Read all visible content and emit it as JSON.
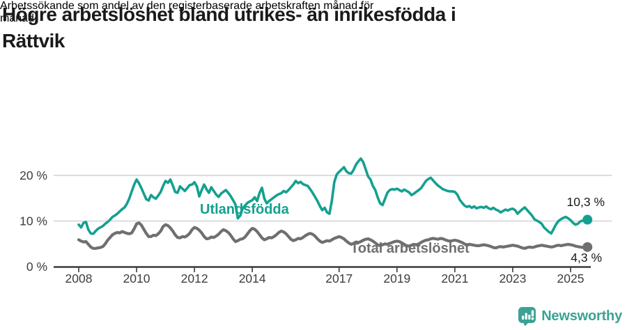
{
  "header": {
    "title_lines": [
      "Högre arbetslöshet bland utrikes- än inrikesfödda i",
      "Rättvik"
    ],
    "subtitle_lines": [
      "Arbetssökande som andel av den registerbaserade arbetskraften månad för",
      "månad."
    ]
  },
  "chart_data": {
    "type": "line",
    "title": "Högre arbetslöshet bland utrikes- än inrikesfödda i Rättvik",
    "subtitle": "Arbetssökande som andel av den registerbaserade arbetskraften månad för månad.",
    "unit": "%",
    "x_start_year": 2008,
    "x_step_months": 1,
    "x_end": "2025-08",
    "ylim": [
      0,
      24
    ],
    "grid": "horizontal",
    "y_ticks": [
      [
        0,
        "0 %"
      ],
      [
        10,
        "10 %"
      ],
      [
        20,
        "20 %"
      ]
    ],
    "x_ticks": [
      [
        2008,
        "2008"
      ],
      [
        2010,
        "2010"
      ],
      [
        2012,
        "2012"
      ],
      [
        2014,
        "2014"
      ],
      [
        2017,
        "2017"
      ],
      [
        2019,
        "2019"
      ],
      [
        2021,
        "2021"
      ],
      [
        2023,
        "2023"
      ],
      [
        2025,
        "2025"
      ]
    ],
    "series": [
      {
        "name": "Utlandsfödda",
        "color": "#14a090",
        "stroke_width": 3.6,
        "end_value_label": "10,3 %",
        "values": [
          9.2,
          8.6,
          9.6,
          9.8,
          8.1,
          7.3,
          7.2,
          7.8,
          8.3,
          8.6,
          8.9,
          9.4,
          9.8,
          10.3,
          10.9,
          11.2,
          11.6,
          12.1,
          12.6,
          13.0,
          13.8,
          15.0,
          16.5,
          18.0,
          19.1,
          18.3,
          17.2,
          16.0,
          14.8,
          14.5,
          15.7,
          15.2,
          14.9,
          15.6,
          16.4,
          17.7,
          18.8,
          18.4,
          19.1,
          17.8,
          16.4,
          16.2,
          17.6,
          17.1,
          16.6,
          17.2,
          17.9,
          18.0,
          18.5,
          17.6,
          15.4,
          16.8,
          18.0,
          17.0,
          16.2,
          17.4,
          16.6,
          15.8,
          15.3,
          16.0,
          16.4,
          16.8,
          16.2,
          15.5,
          14.6,
          13.6,
          10.6,
          11.2,
          12.8,
          13.4,
          14.0,
          14.3,
          14.6,
          15.2,
          14.4,
          16.2,
          17.3,
          14.9,
          13.9,
          14.4,
          14.8,
          15.2,
          15.6,
          15.9,
          16.1,
          16.6,
          16.3,
          16.8,
          17.4,
          18.0,
          18.8,
          18.3,
          18.6,
          18.1,
          17.9,
          17.7,
          17.0,
          16.2,
          15.3,
          14.4,
          13.3,
          12.4,
          12.9,
          11.9,
          11.6,
          14.5,
          18.5,
          20.2,
          20.8,
          21.3,
          21.8,
          20.9,
          20.5,
          20.4,
          21.2,
          22.4,
          23.1,
          23.7,
          22.9,
          21.4,
          19.8,
          19.1,
          17.7,
          16.8,
          15.2,
          13.9,
          13.5,
          14.8,
          16.2,
          16.8,
          17.0,
          16.9,
          17.1,
          16.8,
          16.5,
          16.9,
          16.6,
          16.3,
          15.7,
          16.0,
          16.4,
          16.8,
          17.2,
          18.0,
          18.8,
          19.2,
          19.5,
          18.9,
          18.3,
          17.8,
          17.4,
          17.0,
          16.8,
          16.6,
          16.5,
          16.5,
          16.4,
          15.8,
          14.7,
          14.0,
          13.4,
          13.1,
          13.3,
          12.9,
          13.2,
          12.8,
          13.0,
          13.1,
          12.9,
          13.2,
          12.8,
          12.6,
          12.9,
          12.5,
          12.3,
          11.9,
          12.2,
          12.5,
          12.3,
          12.6,
          12.7,
          12.4,
          11.6,
          12.1,
          12.6,
          13.0,
          12.4,
          11.8,
          11.2,
          10.4,
          10.1,
          9.8,
          9.4,
          8.6,
          8.1,
          7.6,
          7.3,
          8.3,
          9.3,
          10.0,
          10.4,
          10.7,
          10.9,
          10.6,
          10.2,
          9.6,
          9.2,
          9.4,
          9.9,
          10.1,
          10.2,
          10.3
        ]
      },
      {
        "name": "Total arbetslöshet",
        "color": "#6f6f6f",
        "stroke_width": 4.2,
        "end_value_label": "4,3 %",
        "values": [
          5.9,
          5.6,
          5.4,
          5.5,
          4.9,
          4.3,
          4.0,
          4.0,
          4.1,
          4.2,
          4.4,
          5.0,
          5.8,
          6.4,
          7.0,
          7.3,
          7.5,
          7.4,
          7.7,
          7.5,
          7.3,
          7.2,
          7.4,
          8.3,
          9.4,
          9.6,
          9.1,
          8.2,
          7.3,
          6.6,
          6.6,
          6.9,
          6.8,
          7.2,
          7.8,
          8.8,
          9.2,
          9.0,
          8.5,
          7.8,
          7.0,
          6.4,
          6.3,
          6.6,
          6.5,
          6.8,
          7.3,
          8.1,
          8.6,
          8.4,
          8.0,
          7.4,
          6.6,
          6.1,
          6.2,
          6.5,
          6.4,
          6.7,
          7.1,
          7.7,
          8.1,
          7.9,
          7.5,
          6.9,
          6.1,
          5.5,
          5.7,
          6.0,
          6.1,
          6.5,
          7.2,
          7.9,
          8.4,
          8.2,
          7.7,
          7.0,
          6.3,
          5.9,
          6.1,
          6.4,
          6.3,
          6.6,
          7.0,
          7.5,
          7.8,
          7.6,
          7.2,
          6.6,
          6.0,
          5.7,
          5.9,
          6.2,
          6.1,
          6.4,
          6.8,
          7.1,
          7.3,
          7.1,
          6.7,
          6.1,
          5.6,
          5.3,
          5.5,
          5.7,
          5.6,
          5.9,
          6.2,
          6.4,
          6.6,
          6.4,
          6.1,
          5.6,
          5.2,
          4.9,
          5.1,
          5.4,
          5.3,
          5.5,
          5.8,
          6.0,
          6.1,
          5.9,
          5.6,
          5.2,
          4.8,
          4.6,
          4.8,
          5.0,
          4.9,
          5.1,
          5.3,
          5.5,
          5.6,
          5.5,
          5.2,
          4.9,
          4.6,
          4.5,
          4.7,
          4.9,
          4.8,
          5.0,
          5.3,
          5.6,
          5.8,
          5.9,
          6.1,
          6.2,
          6.1,
          6.0,
          6.2,
          6.1,
          5.9,
          5.7,
          5.6,
          5.7,
          5.8,
          5.7,
          5.5,
          5.3,
          5.0,
          4.8,
          4.9,
          4.8,
          4.7,
          4.6,
          4.6,
          4.7,
          4.8,
          4.7,
          4.6,
          4.4,
          4.2,
          4.1,
          4.3,
          4.4,
          4.3,
          4.4,
          4.5,
          4.6,
          4.7,
          4.6,
          4.5,
          4.3,
          4.1,
          4.0,
          4.2,
          4.3,
          4.2,
          4.3,
          4.5,
          4.6,
          4.7,
          4.6,
          4.5,
          4.4,
          4.3,
          4.4,
          4.6,
          4.7,
          4.6,
          4.7,
          4.8,
          4.9,
          4.8,
          4.7,
          4.5,
          4.4,
          4.3,
          4.2,
          4.3,
          4.3
        ]
      }
    ]
  },
  "footer": {
    "brand": "Newsworthy",
    "brand_color": "#3ba294",
    "badge_icon": "bar-chart-exclamation-pin"
  }
}
